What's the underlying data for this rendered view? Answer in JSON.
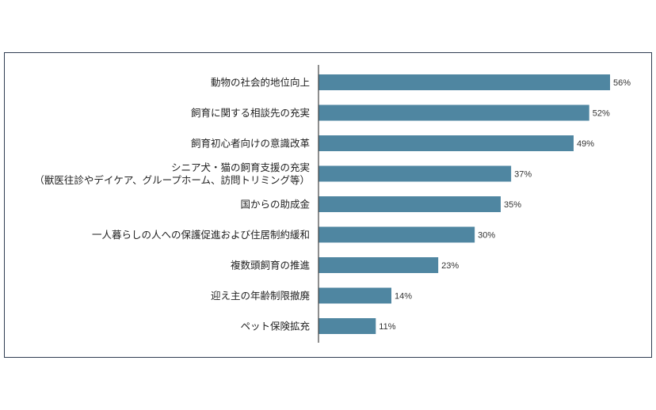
{
  "chart_data": {
    "type": "bar",
    "orientation": "horizontal",
    "categories": [
      [
        "動物の社会的地位向上"
      ],
      [
        "飼育に関する相談先の充実"
      ],
      [
        "飼育初心者向けの意識改革"
      ],
      [
        "シニア犬・猫の飼育支援の充実",
        "（獣医往診やデイケア、グループホーム、訪問トリミング等）"
      ],
      [
        "国からの助成金"
      ],
      [
        "一人暮らしの人への保護促進および住居制約緩和"
      ],
      [
        "複数頭飼育の推進"
      ],
      [
        "迎え主の年齢制限撤廃"
      ],
      [
        "ペット保険拡充"
      ]
    ],
    "values": [
      56,
      52,
      49,
      37,
      35,
      30,
      23,
      14,
      11
    ],
    "value_labels": [
      "56%",
      "52%",
      "49%",
      "37%",
      "35%",
      "30%",
      "23%",
      "14%",
      "11%"
    ],
    "xlim": [
      0,
      60
    ],
    "grid": false,
    "bar_color": "#4f86a1"
  }
}
